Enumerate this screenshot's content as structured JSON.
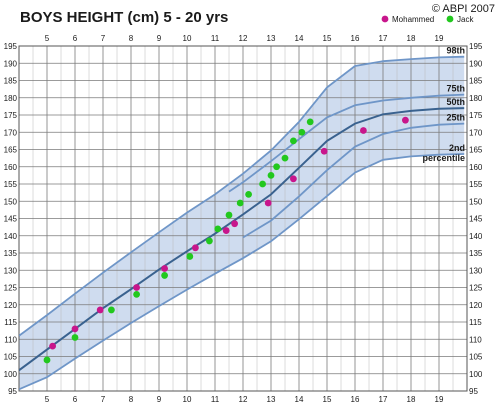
{
  "chart_data": {
    "type": "scatter",
    "title": "BOYS HEIGHT (cm)  5 - 20 yrs",
    "copyright": "© ABPI 2007",
    "x_ticks": [
      5,
      6,
      7,
      8,
      9,
      10,
      11,
      12,
      13,
      14,
      15,
      16,
      17,
      18,
      19
    ],
    "xlim": [
      4,
      20
    ],
    "ylim": [
      95,
      195
    ],
    "y_ticks": [
      95,
      100,
      105,
      110,
      115,
      120,
      125,
      130,
      135,
      140,
      145,
      150,
      155,
      160,
      165,
      170,
      175,
      180,
      185,
      190,
      195
    ],
    "grid": true,
    "legend": {
      "position": "top-right",
      "entries": [
        {
          "name": "Mohammed",
          "color": "#c8168c"
        },
        {
          "name": "Jack",
          "color": "#22c81e"
        }
      ]
    },
    "band_color": "#cfdcef",
    "percentile_curves": [
      {
        "label": "98th",
        "color": "#6f96c8",
        "points": [
          [
            4.0,
            111.0
          ],
          [
            5.0,
            117.0
          ],
          [
            6.0,
            123.2
          ],
          [
            7.0,
            129.3
          ],
          [
            8.0,
            135.2
          ],
          [
            9.0,
            141.0
          ],
          [
            10.0,
            146.7
          ],
          [
            11.0,
            152.0
          ],
          [
            12.0,
            158.0
          ],
          [
            13.0,
            164.7
          ],
          [
            14.0,
            173.0
          ],
          [
            15.0,
            183.0
          ],
          [
            16.0,
            189.2
          ],
          [
            17.0,
            190.6
          ],
          [
            18.0,
            191.2
          ],
          [
            19.0,
            191.7
          ],
          [
            19.9,
            191.9
          ]
        ]
      },
      {
        "label": "75th",
        "color": "#6f96c8",
        "points": [
          [
            11.5,
            152.8
          ],
          [
            12.0,
            155.5
          ],
          [
            13.0,
            161.6
          ],
          [
            14.0,
            168.0
          ],
          [
            15.0,
            174.3
          ],
          [
            16.0,
            177.8
          ],
          [
            17.0,
            179.2
          ],
          [
            18.0,
            180.0
          ],
          [
            19.0,
            180.6
          ],
          [
            19.9,
            180.9
          ]
        ]
      },
      {
        "label": "50th",
        "color": "#3a628f",
        "points": [
          [
            4.0,
            101.0
          ],
          [
            5.0,
            107.0
          ],
          [
            6.0,
            113.0
          ],
          [
            7.0,
            119.0
          ],
          [
            8.0,
            124.5
          ],
          [
            9.0,
            130.2
          ],
          [
            10.0,
            135.5
          ],
          [
            11.0,
            140.6
          ],
          [
            12.0,
            146.2
          ],
          [
            13.0,
            152.0
          ],
          [
            14.0,
            159.7
          ],
          [
            15.0,
            167.5
          ],
          [
            16.0,
            172.5
          ],
          [
            17.0,
            175.2
          ],
          [
            18.0,
            176.2
          ],
          [
            19.0,
            176.8
          ],
          [
            19.9,
            177.0
          ]
        ]
      },
      {
        "label": "25th",
        "color": "#6f96c8",
        "points": [
          [
            12.0,
            139.5
          ],
          [
            13.0,
            144.4
          ],
          [
            14.0,
            151.4
          ],
          [
            15.0,
            159.0
          ],
          [
            16.0,
            165.8
          ],
          [
            17.0,
            169.5
          ],
          [
            18.0,
            171.3
          ],
          [
            19.0,
            172.2
          ],
          [
            19.9,
            172.5
          ]
        ]
      },
      {
        "label": "2nd",
        "sublabel": "percentile",
        "color": "#6f96c8",
        "points": [
          [
            4.0,
            95.5
          ],
          [
            5.0,
            99.0
          ],
          [
            6.0,
            104.4
          ],
          [
            7.0,
            109.6
          ],
          [
            8.0,
            114.7
          ],
          [
            9.0,
            119.6
          ],
          [
            10.0,
            124.4
          ],
          [
            11.0,
            129.0
          ],
          [
            12.0,
            133.5
          ],
          [
            13.0,
            138.4
          ],
          [
            14.0,
            144.8
          ],
          [
            15.0,
            151.5
          ],
          [
            16.0,
            158.3
          ],
          [
            17.0,
            162.0
          ],
          [
            18.0,
            163.0
          ],
          [
            19.0,
            163.5
          ],
          [
            19.9,
            163.7
          ]
        ]
      }
    ],
    "series": [
      {
        "name": "Mohammed",
        "color": "#c8168c",
        "points": [
          [
            5.2,
            108
          ],
          [
            6.0,
            113
          ],
          [
            6.9,
            118.5
          ],
          [
            8.2,
            125
          ],
          [
            9.2,
            130.5
          ],
          [
            10.3,
            136.5
          ],
          [
            11.4,
            141.5
          ],
          [
            11.7,
            143.5
          ],
          [
            12.9,
            149.5
          ],
          [
            13.8,
            156.5
          ],
          [
            14.9,
            164.5
          ],
          [
            16.3,
            170.5
          ],
          [
            17.8,
            173.5
          ]
        ]
      },
      {
        "name": "Jack",
        "color": "#22c81e",
        "points": [
          [
            5.0,
            104
          ],
          [
            6.0,
            110.5
          ],
          [
            7.3,
            118.5
          ],
          [
            8.2,
            123
          ],
          [
            9.2,
            128.5
          ],
          [
            10.1,
            134
          ],
          [
            10.8,
            138.5
          ],
          [
            11.1,
            142
          ],
          [
            11.5,
            146
          ],
          [
            11.9,
            149.5
          ],
          [
            12.2,
            152
          ],
          [
            12.7,
            155
          ],
          [
            13.0,
            157.5
          ],
          [
            13.2,
            160
          ],
          [
            13.5,
            162.5
          ],
          [
            13.8,
            167.5
          ],
          [
            14.1,
            170
          ],
          [
            14.4,
            173
          ]
        ]
      }
    ]
  }
}
